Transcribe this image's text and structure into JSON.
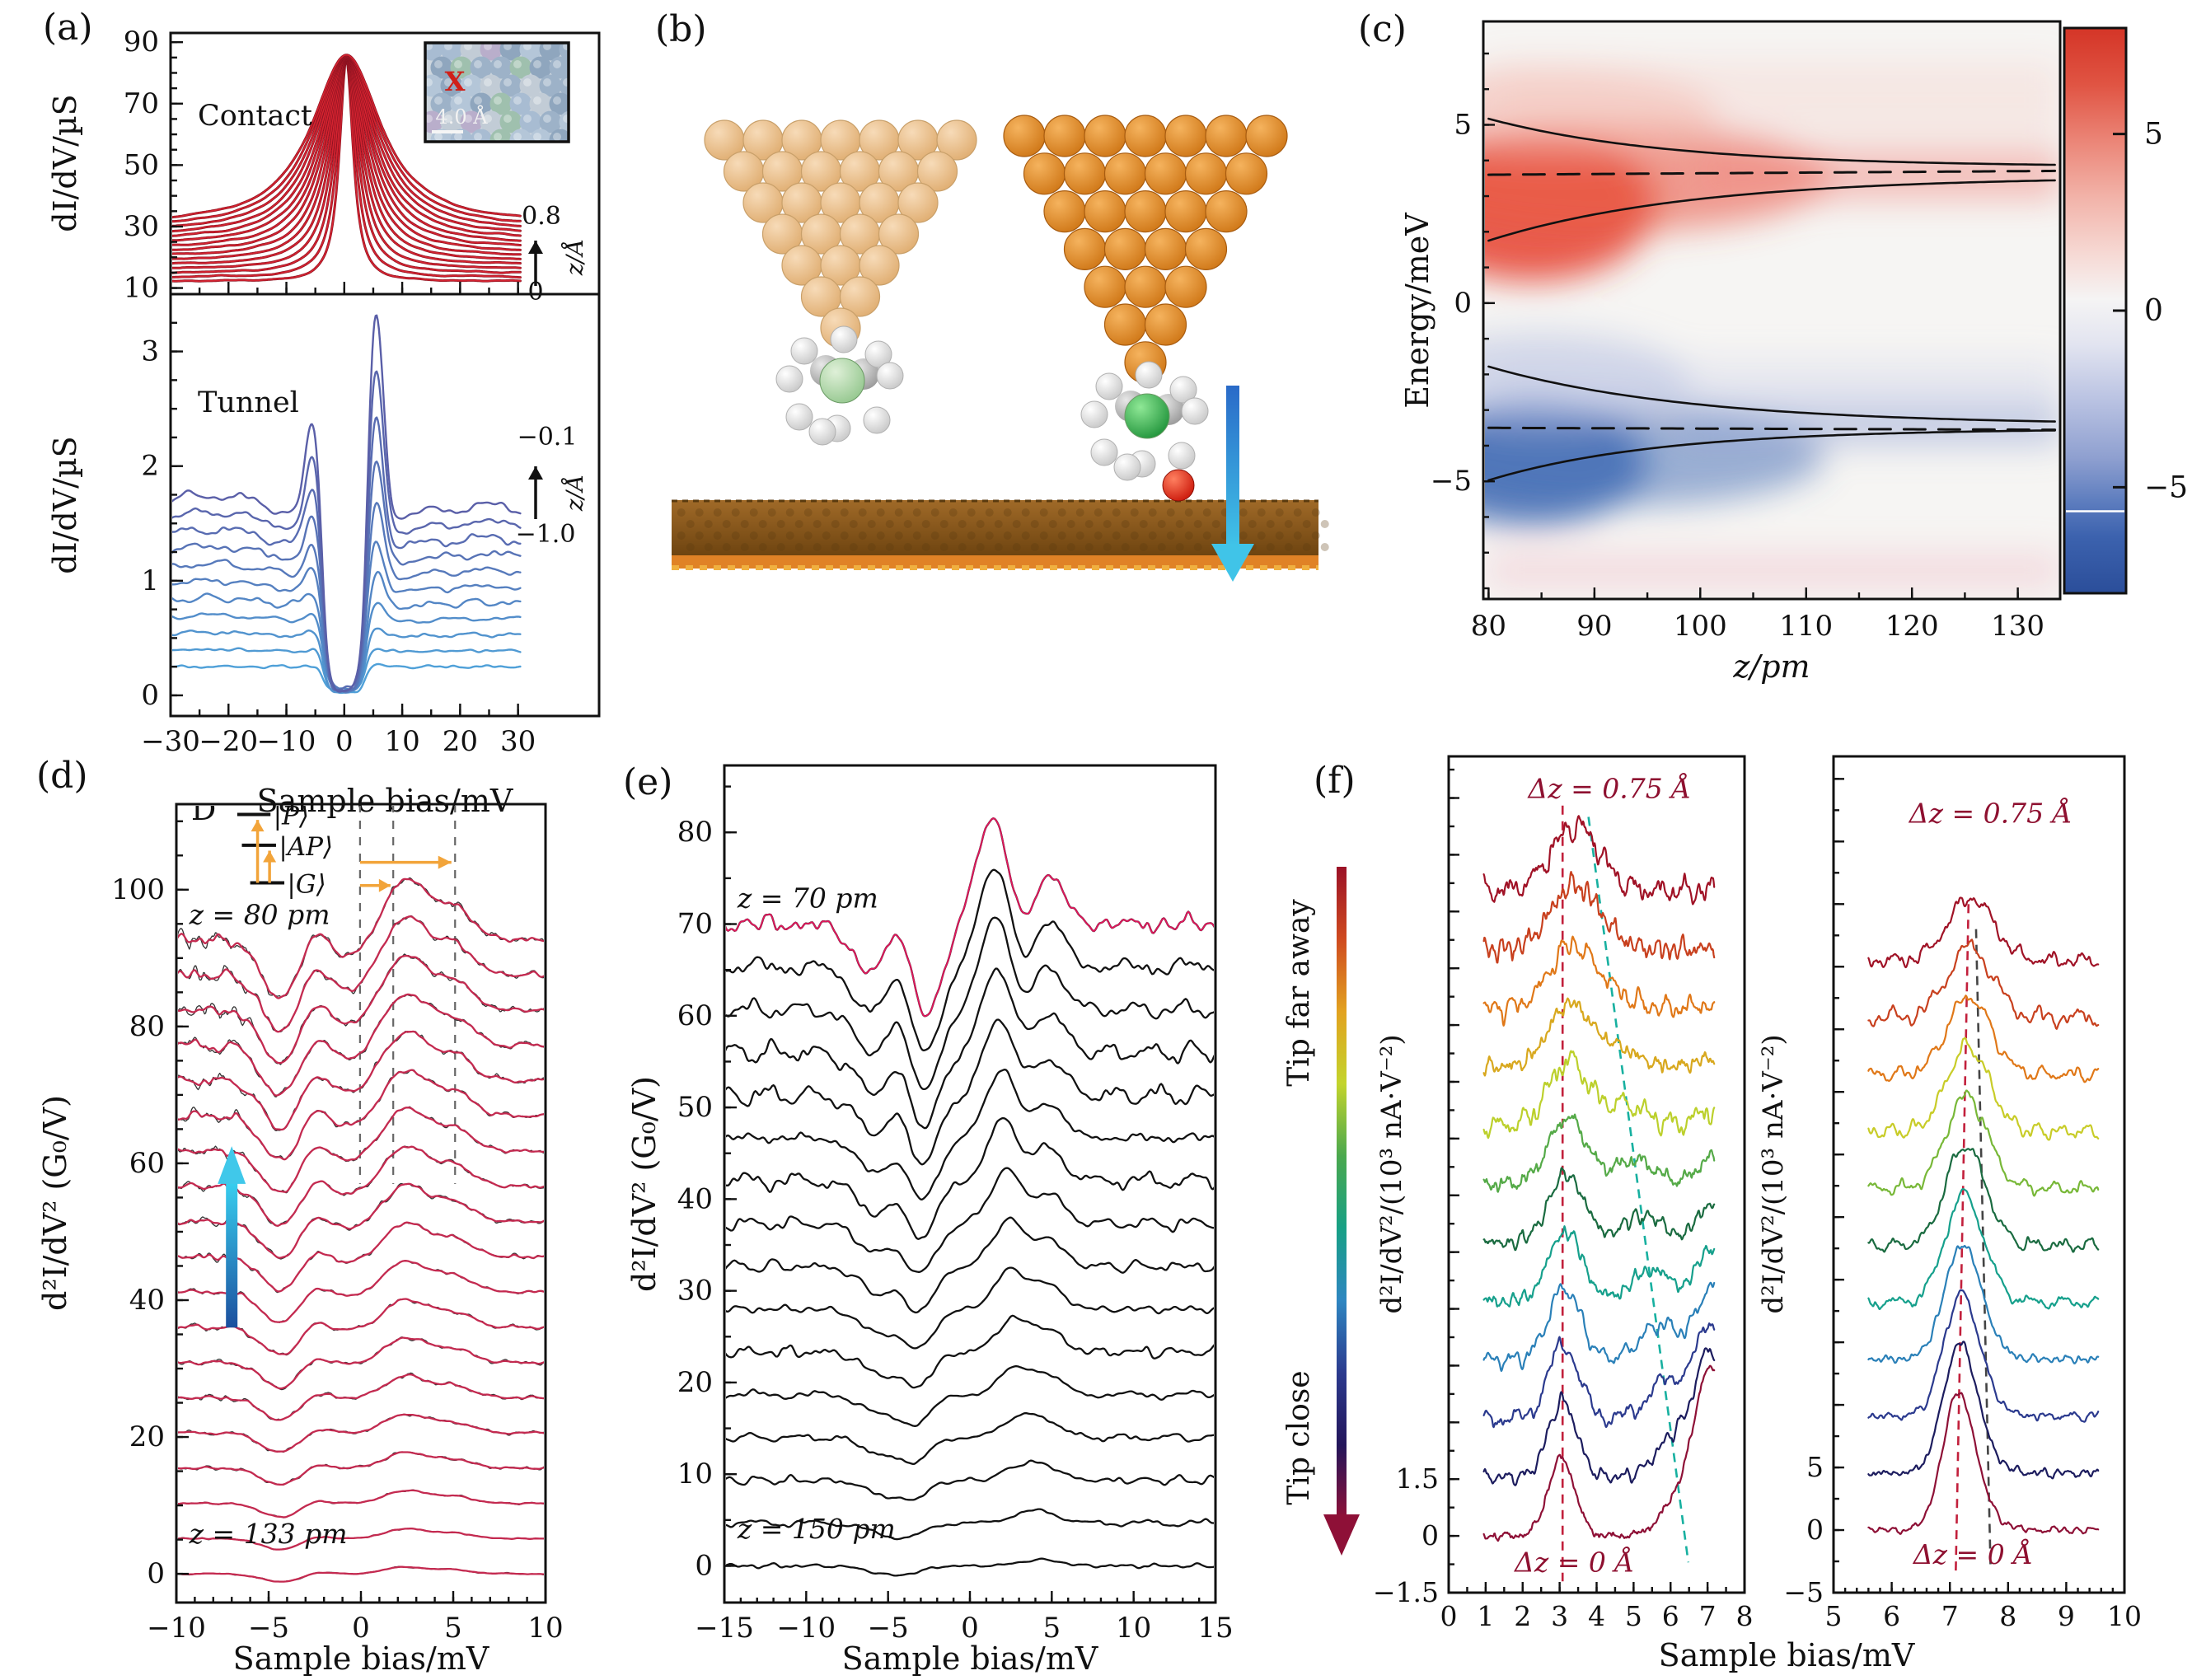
{
  "page": {
    "background": "#ffffff",
    "figure_type": "multi-panel scientific figure"
  },
  "panels": {
    "a": {
      "label": "(a)"
    },
    "b": {
      "label": "(b)"
    },
    "c": {
      "label": "(c)"
    },
    "d": {
      "label": "(d)"
    },
    "e": {
      "label": "(e)"
    },
    "f": {
      "label": "(f)"
    }
  },
  "chart_data": [
    {
      "id": "a_contact",
      "type": "line",
      "panel": "a",
      "region_label": "Contact",
      "ylabel": "dI/dV/µS",
      "xlim": [
        -30,
        44
      ],
      "ylim": [
        8,
        93
      ],
      "xticks": [
        -30,
        -20,
        -10,
        0,
        10,
        20,
        30
      ],
      "yticks": [
        10,
        30,
        50,
        70,
        90
      ],
      "n_curves": 15,
      "curve_color": "#d42330",
      "curve_dark": "#8a1220",
      "peak_center_mV": 0.35,
      "peak_top": 85.5,
      "baseline_range": [
        12.2,
        30.8
      ],
      "curve_x_range": [
        -30.2,
        30.4
      ],
      "z_offset_annotation": {
        "top": "0.8",
        "bottom": "0",
        "axis_label": "z/Å"
      },
      "inset": {
        "type": "stm-topograph",
        "marker": "X",
        "marker_color": "#d02018",
        "scale_label": "4.0 Å"
      }
    },
    {
      "id": "a_tunnel",
      "type": "line",
      "panel": "a",
      "region_label": "Tunnel",
      "ylabel": "dI/dV/µS",
      "xlabel": "Sample bias/mV",
      "xlim": [
        -30,
        44
      ],
      "ylim": [
        -0.18,
        3.5
      ],
      "xticks": [
        -30,
        -20,
        -10,
        0,
        10,
        20,
        30
      ],
      "yticks": [
        0,
        1,
        2,
        3
      ],
      "n_curves": 11,
      "gap_half_width_mV": 3.6,
      "side_peak_mV": 5.4,
      "baseline_range": [
        0.23,
        1.51
      ],
      "color_low": "#4fa0d8",
      "color_high": "#5a5fa8",
      "z_offset_annotation": {
        "top": "−0.1",
        "bottom": "−1.0",
        "axis_label": "z/Å"
      }
    },
    {
      "id": "c_map",
      "type": "heatmap",
      "panel": "c",
      "xlabel": "z/pm",
      "ylabel": "Energy/meV",
      "xlim": [
        79.5,
        134
      ],
      "ylim": [
        -8.3,
        7.9
      ],
      "xticks": [
        80,
        90,
        100,
        110,
        120,
        130
      ],
      "yticks": [
        5,
        0,
        -5
      ],
      "positive_band_meV": 3.6,
      "negative_band_meV": -3.5,
      "dashed_levels_meV": [
        3.6,
        -3.5
      ],
      "solid_curves": [
        {
          "from": [
            80,
            5.15
          ],
          "to": [
            133,
            3.9
          ]
        },
        {
          "from": [
            80,
            1.77
          ],
          "to": [
            133,
            3.52
          ]
        },
        {
          "from": [
            80,
            -1.8
          ],
          "to": [
            133,
            -3.28
          ]
        },
        {
          "from": [
            80,
            -4.95
          ],
          "to": [
            133,
            -3.56
          ]
        }
      ],
      "colorbar": {
        "ticks": [
          5,
          0,
          -5
        ],
        "top_color": "#d43527",
        "zero_color": "#f5f4f4",
        "bottom_color": "#2b4e9a"
      }
    },
    {
      "id": "d_waterfall",
      "type": "line",
      "panel": "d",
      "ylabel": "d²I/dV² (G₀/V)",
      "xlabel": "Sample bias/mV",
      "xlim": [
        -10,
        10
      ],
      "ylim": [
        -4.2,
        112.5
      ],
      "xticks": [
        -10,
        -5,
        0,
        5,
        10
      ],
      "yticks": [
        0,
        20,
        40,
        60,
        80,
        100
      ],
      "n_curves": 19,
      "offset_step": 5.15,
      "z_top_label": "z = 80 pm",
      "z_bottom_label": "z = 133 pm",
      "dashed_guides_mV": [
        -0.05,
        1.75,
        5.1
      ],
      "curve_color": "#c42a50",
      "data_color": "#333333",
      "features": {
        "dip_mV": -4.35,
        "bump_mV": -2.5,
        "peak1_mV": 2.45,
        "peak2_mV": 5.05
      },
      "inset_levels": {
        "title": "D",
        "states": [
          "|P⟩",
          "|AP⟩",
          "|G⟩"
        ],
        "arrow_color": "#f2a43a"
      }
    },
    {
      "id": "e_waterfall",
      "type": "line",
      "panel": "e",
      "ylabel": "d²I/dV² (G₀/V)",
      "xlabel": "Sample bias/mV",
      "xlim": [
        -15,
        15
      ],
      "ylim": [
        -4,
        87.3
      ],
      "xticks": [
        -15,
        -10,
        -5,
        0,
        5,
        10,
        15
      ],
      "yticks": [
        0,
        10,
        20,
        30,
        40,
        50,
        60,
        70,
        80
      ],
      "n_curves": 16,
      "offset_step": 4.667,
      "z_top_label": "z = 70 pm",
      "z_bottom_label": "z = 150 pm",
      "curve_color": "#111111",
      "fit_color": "#e0175c",
      "features": {
        "dip1_mV": -5.9,
        "dip2_mV": -2.7,
        "peak1_mV": 1.35,
        "peak2_mV": 4.85
      }
    },
    {
      "id": "f_left",
      "type": "line",
      "panel": "f",
      "ylabel": "d²I/dV²/(10³ nA·V⁻²)",
      "xlim": [
        0,
        8
      ],
      "ylim": [
        -1.5,
        20.6
      ],
      "xticks": [
        0,
        1,
        2,
        3,
        4,
        5,
        6,
        7,
        8
      ],
      "ytick_labels": [
        "1.5",
        "0",
        "−1.5"
      ],
      "ytick_values": [
        1.5,
        0,
        -1.5
      ],
      "ytick_step": 1.5,
      "n_curves": 12,
      "offset_step": 1.55,
      "top_annotation": "Δz = 0.75 Å",
      "bottom_annotation": "Δz = 0 Å",
      "annotation_color": "#8e1030",
      "main_peak_mV": 3.1,
      "dashed_red": {
        "x": 3.08,
        "y_from": 19.3,
        "y_to": -1.2,
        "color": "#c2203c"
      },
      "dashed_teal": {
        "from": [
          3.78,
          19.0
        ],
        "to": [
          6.48,
          -0.7
        ],
        "color": "#17b0a0"
      },
      "colors_top_to_bottom": [
        "#a01226",
        "#c8401e",
        "#e07818",
        "#d8a81e",
        "#bcd02c",
        "#55aa48",
        "#1a6b40",
        "#16a08c",
        "#2a80b8",
        "#2b3a8e",
        "#1c1c5e",
        "#8e1036"
      ],
      "curve_x_range": [
        0.95,
        7.18
      ]
    },
    {
      "id": "f_right",
      "type": "line",
      "panel": "f",
      "ylabel": "d²I/dV²/(10³ nA·V⁻²)",
      "xlabel": "Sample bias/mV",
      "xlim": [
        5,
        10
      ],
      "ylim": [
        -5,
        61.8
      ],
      "xticks": [
        5,
        6,
        7,
        8,
        9,
        10
      ],
      "ytick_labels": [
        "5",
        "0",
        "−5"
      ],
      "ytick_values": [
        5,
        0,
        -5
      ],
      "n_curves": 11,
      "offset_step": 4.55,
      "top_annotation": "Δz = 0.75 Å",
      "bottom_annotation": "Δz = 0 Å",
      "annotation_color": "#8e1030",
      "peak_mV": 7.3,
      "dashed_red": {
        "from": [
          7.32,
          50
        ],
        "to": [
          7.1,
          -3.6
        ],
        "color": "#c2203c"
      },
      "dashed_gray": {
        "from": [
          7.45,
          48
        ],
        "to": [
          7.7,
          -3.2
        ],
        "color": "#444444"
      },
      "colors_top_to_bottom": [
        "#a01226",
        "#c8401e",
        "#e07818",
        "#c8cc28",
        "#78b838",
        "#1a6b40",
        "#16a08c",
        "#2a80b8",
        "#2b3a8e",
        "#1c1c5e",
        "#8e1036"
      ],
      "curve_x_range": [
        5.6,
        9.55
      ]
    }
  ],
  "shared_f": {
    "xlabel": "Sample bias/mV",
    "gradient_arrow": {
      "label_top": "Tip far away",
      "label_bottom": "Tip close",
      "stops": [
        "#9b1127",
        "#cf4a1f",
        "#e2a21f",
        "#c3d42c",
        "#4aa84e",
        "#17a085",
        "#2e86c1",
        "#2b3a8e",
        "#23155a",
        "#8e1037"
      ]
    }
  },
  "panel_b_scene": {
    "description": "STM tip with attached molecule above metal surface, approaching adatom",
    "left_tip_colors": [
      "#f7dbb8",
      "#e0ae72"
    ],
    "right_tip_colors": [
      "#f5b35e",
      "#d07818"
    ],
    "molecule_center_left": "#96c890",
    "molecule_center_right": "#22953c",
    "hydrogen_color": "#ffffff",
    "adatom_color": "#cc1a0c",
    "surface_colors": [
      "#a06a28",
      "#6e4410",
      "#e08226"
    ],
    "approach_arrow_colors": [
      "#2a6ac8",
      "#40c4e8"
    ]
  }
}
